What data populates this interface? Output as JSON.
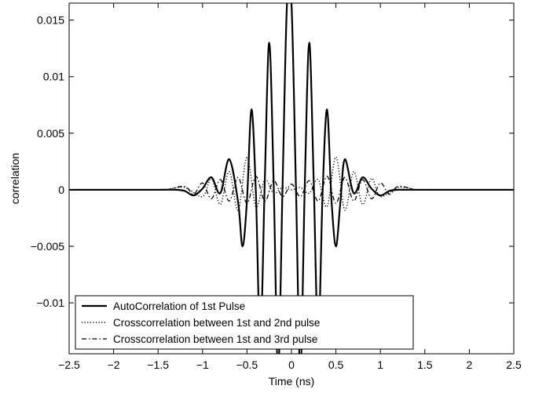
{
  "chart_data": {
    "type": "line",
    "title": "",
    "xlabel": "Time (ns)",
    "ylabel": "correlation",
    "xlim": [
      -2.5,
      2.5
    ],
    "ylim": [
      -0.0145,
      0.0165
    ],
    "x_ticks": [
      -2.5,
      -2,
      -1.5,
      -1,
      -0.5,
      0,
      0.5,
      1,
      1.5,
      2,
      2.5
    ],
    "x_tick_labels": [
      "−2.5",
      "−2",
      "−1.5",
      "−1",
      "−0.5",
      "0",
      "0.5",
      "1",
      "1.5",
      "2",
      "2.5"
    ],
    "y_ticks": [
      -0.01,
      -0.005,
      0,
      0.005,
      0.01,
      0.015
    ],
    "y_tick_labels": [
      "−0.01",
      "−0.005",
      "0",
      "0.005",
      "0.01",
      "0.015"
    ],
    "grid": false,
    "legend_position": "bottom-left",
    "series": [
      {
        "name": "AutoCorrelation of 1st Pulse",
        "style": "solid",
        "color": "#000000",
        "x": [
          -1.5,
          -1.3,
          -1.2,
          -1.1,
          -1.0,
          -0.9,
          -0.8,
          -0.7,
          -0.6,
          -0.55,
          -0.5,
          -0.45,
          -0.4,
          -0.35,
          -0.3,
          -0.25,
          -0.2,
          -0.15,
          -0.1,
          -0.05,
          0,
          0.05,
          0.1,
          0.15,
          0.2,
          0.25,
          0.3,
          0.35,
          0.4,
          0.45,
          0.5,
          0.55,
          0.6,
          0.7,
          0.8,
          0.9,
          1.0,
          1.1,
          1.2,
          1.3,
          1.5
        ],
        "y": [
          0,
          0,
          -0.0001,
          -0.0005,
          0.0001,
          0.0011,
          -0.0003,
          0.0027,
          -0.0011,
          -0.005,
          -0.0009,
          0.0071,
          -0.0003,
          -0.0134,
          0.0008,
          0.013,
          0.0005,
          -0.016,
          0.0004,
          0.0165,
          0.0165,
          0.0004,
          -0.016,
          0.0005,
          0.013,
          0.0008,
          -0.0134,
          -0.0003,
          0.0071,
          -0.0009,
          -0.005,
          -0.0011,
          0.0027,
          -0.0003,
          0.0011,
          0.0001,
          -0.0005,
          -0.0001,
          0,
          0,
          0
        ]
      },
      {
        "name": "Crosscorrelation between 1st and 2nd pulse",
        "style": "dotted",
        "color": "#000000",
        "x": [
          -1.4,
          -1.2,
          -1.0,
          -0.9,
          -0.8,
          -0.7,
          -0.6,
          -0.5,
          -0.4,
          -0.3,
          -0.2,
          -0.1,
          0,
          0.1,
          0.2,
          0.3,
          0.4,
          0.5,
          0.6,
          0.7,
          0.8,
          0.9,
          1.0,
          1.2,
          1.4
        ],
        "y": [
          0,
          0.0002,
          -0.0006,
          0.001,
          -0.0013,
          0.0016,
          -0.0018,
          0.0029,
          -0.0015,
          0.0009,
          -0.0003,
          0.0002,
          0,
          0.0002,
          -0.0003,
          0.0009,
          -0.0015,
          0.0029,
          -0.0018,
          0.0016,
          -0.0013,
          0.001,
          -0.0006,
          0.0002,
          0
        ]
      },
      {
        "name": "Crosscorrelation between 1st and 3rd pulse",
        "style": "dashdot",
        "color": "#000000",
        "x": [
          -1.4,
          -1.2,
          -1.1,
          -1.0,
          -0.9,
          -0.8,
          -0.7,
          -0.6,
          -0.5,
          -0.4,
          -0.3,
          -0.2,
          -0.1,
          0,
          0.1,
          0.2,
          0.3,
          0.4,
          0.5,
          0.6,
          0.7,
          0.8,
          0.9,
          1.0,
          1.1,
          1.2,
          1.4
        ],
        "y": [
          0,
          0.0003,
          -0.0004,
          0.0006,
          -0.0008,
          0.0009,
          -0.001,
          0.0011,
          -0.0012,
          0.0012,
          -0.001,
          0.0008,
          -0.0006,
          0.0005,
          -0.0006,
          0.0008,
          -0.001,
          0.0012,
          -0.0012,
          0.0011,
          -0.001,
          0.0009,
          -0.0008,
          0.0006,
          -0.0004,
          0.0003,
          0
        ]
      }
    ]
  }
}
